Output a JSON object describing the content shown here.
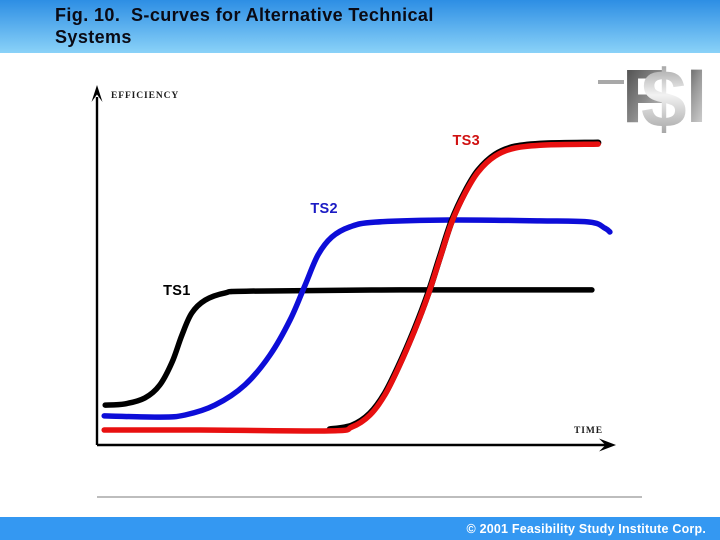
{
  "header": {
    "title_line1": "Fig. 10.  S-curves for Alternative Technical",
    "title_line2": "Systems"
  },
  "logo": {
    "f": "F",
    "s": "$",
    "i": "I"
  },
  "chart_data": {
    "type": "line",
    "title": "S-curves for Alternative Technical Systems",
    "xlabel": "TIME",
    "ylabel": "EFFICIENCY",
    "x_range": [
      0,
      100
    ],
    "y_range": [
      0,
      110
    ],
    "grid": false,
    "legend": "inline labels near each curve",
    "axes_style": "hand-drawn arrow axes, no ticks, qualitative sketch",
    "series": [
      {
        "name": "TS1",
        "color": "#000000",
        "label_color": "#000000",
        "label_pos": [
          15.5,
          51.3
        ],
        "points": [
          [
            1.6,
            13.3
          ],
          [
            5.4,
            13.7
          ],
          [
            9.3,
            15.7
          ],
          [
            12.2,
            20
          ],
          [
            14.6,
            27.7
          ],
          [
            16.5,
            36.7
          ],
          [
            18.4,
            44
          ],
          [
            21,
            48.3
          ],
          [
            24.9,
            50.7
          ],
          [
            29.7,
            51.3
          ],
          [
            58.8,
            51.7
          ],
          [
            96.1,
            51.7
          ]
        ]
      },
      {
        "name": "TS2",
        "color": "#0d0dd8",
        "label_color": "#1b1bc4",
        "label_pos": [
          44.1,
          78.7
        ],
        "points": [
          [
            1.4,
            9.7
          ],
          [
            12.2,
            9.3
          ],
          [
            17.1,
            10
          ],
          [
            22.9,
            13.3
          ],
          [
            28.7,
            20
          ],
          [
            33.6,
            30
          ],
          [
            37.5,
            41.7
          ],
          [
            40.4,
            53.3
          ],
          [
            42.9,
            63.3
          ],
          [
            45.6,
            69.3
          ],
          [
            49.1,
            72.7
          ],
          [
            54,
            74.3
          ],
          [
            68.5,
            75
          ],
          [
            86,
            74.7
          ],
          [
            95.7,
            74.3
          ],
          [
            98.6,
            72.3
          ],
          [
            99.6,
            71
          ]
        ]
      },
      {
        "name": "TS3",
        "color": "#e81010",
        "label_color": "#d01212",
        "label_pos": [
          71.7,
          101.5
        ],
        "edge_color": "#000000",
        "edge_from": 2,
        "points": [
          [
            1.4,
            5
          ],
          [
            20,
            5
          ],
          [
            45.2,
            4.7
          ],
          [
            49.5,
            6
          ],
          [
            53,
            10
          ],
          [
            55.9,
            16.7
          ],
          [
            58.8,
            26.7
          ],
          [
            61.7,
            38.3
          ],
          [
            64.3,
            50
          ],
          [
            66.6,
            62.3
          ],
          [
            68.9,
            74.3
          ],
          [
            71.5,
            84
          ],
          [
            74,
            91
          ],
          [
            77.3,
            96.3
          ],
          [
            81.2,
            99
          ],
          [
            87,
            100
          ],
          [
            97.3,
            100.3
          ]
        ]
      }
    ]
  },
  "footer": {
    "copyright": "© 2001 Feasibility Study Institute Corp."
  },
  "colors": {
    "header_top": "#2d8ee4",
    "header_bottom": "#8ad2f8",
    "footer_bg": "#3498f2",
    "separator": "#bdbdbd",
    "logo_gray_dark": "#3c3c3c",
    "logo_gray_light": "#e2e2e2"
  }
}
